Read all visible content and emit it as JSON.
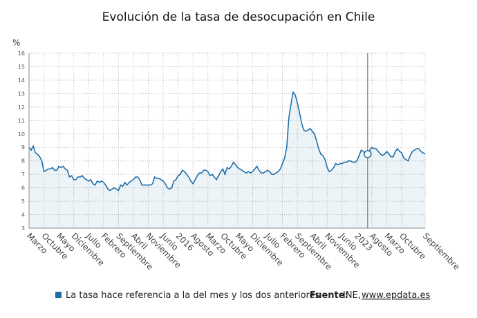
{
  "chart_data": {
    "type": "line",
    "title": "Evolución de la tasa de desocupación en Chile",
    "y_label": "%",
    "categories": [
      "Marzo",
      null,
      null,
      null,
      null,
      null,
      null,
      "Octubre",
      null,
      null,
      null,
      null,
      null,
      null,
      "Mayo",
      null,
      null,
      null,
      null,
      null,
      null,
      "Diciembre",
      null,
      null,
      null,
      null,
      null,
      null,
      "Julio",
      null,
      null,
      null,
      null,
      null,
      null,
      "Febrero",
      null,
      null,
      null,
      null,
      null,
      null,
      "Septiembre",
      null,
      null,
      null,
      null,
      null,
      null,
      "Abril",
      null,
      null,
      null,
      null,
      null,
      null,
      "Noviembre",
      null,
      null,
      null,
      null,
      null,
      null,
      "Junio",
      null,
      null,
      null,
      null,
      null,
      null,
      "2016",
      null,
      null,
      null,
      null,
      null,
      null,
      "Agosto",
      null,
      null,
      null,
      null,
      null,
      null,
      "Marzo",
      null,
      null,
      null,
      null,
      null,
      null,
      "Octubre",
      null,
      null,
      null,
      null,
      null,
      null,
      "Mayo",
      null,
      null,
      null,
      null,
      null,
      null,
      "Diciembre",
      null,
      null,
      null,
      null,
      null,
      null,
      "Julio",
      null,
      null,
      null,
      null,
      null,
      null,
      "Febrero",
      null,
      null,
      null,
      null,
      null,
      null,
      "Septiembre",
      null,
      null,
      null,
      null,
      null,
      null,
      "Abril",
      null,
      null,
      null,
      null,
      null,
      null,
      "Noviembre",
      null,
      null,
      null,
      null,
      null,
      null,
      "Junio",
      null,
      null,
      null,
      null,
      null,
      null,
      "2023",
      null,
      null,
      null,
      null,
      null,
      null,
      "Agosto",
      null,
      null,
      null,
      null,
      null,
      null,
      "Marzo",
      null,
      null,
      null,
      null,
      null,
      null,
      "Octubre",
      null,
      null,
      null,
      null,
      null,
      null,
      null,
      null,
      null,
      null,
      "Septiembre"
    ],
    "values": [
      9.0,
      8.8,
      9.1,
      8.6,
      8.5,
      8.3,
      8.0,
      7.2,
      7.3,
      7.4,
      7.4,
      7.5,
      7.3,
      7.3,
      7.6,
      7.5,
      7.6,
      7.4,
      7.3,
      6.8,
      6.9,
      6.6,
      6.6,
      6.8,
      6.8,
      6.9,
      6.7,
      6.6,
      6.5,
      6.6,
      6.3,
      6.2,
      6.5,
      6.4,
      6.5,
      6.4,
      6.2,
      5.9,
      5.8,
      5.9,
      6.0,
      5.9,
      5.8,
      6.2,
      6.1,
      6.4,
      6.2,
      6.4,
      6.5,
      6.6,
      6.8,
      6.8,
      6.6,
      6.2,
      6.2,
      6.2,
      6.2,
      6.2,
      6.3,
      6.8,
      6.7,
      6.7,
      6.6,
      6.5,
      6.3,
      6.0,
      5.9,
      6.0,
      6.5,
      6.6,
      6.9,
      7.0,
      7.3,
      7.2,
      7.0,
      6.8,
      6.5,
      6.3,
      6.6,
      6.9,
      7.1,
      7.1,
      7.3,
      7.3,
      7.2,
      6.9,
      7.0,
      6.8,
      6.6,
      6.9,
      7.2,
      7.4,
      7.0,
      7.5,
      7.4,
      7.6,
      7.9,
      7.7,
      7.5,
      7.4,
      7.3,
      7.2,
      7.1,
      7.2,
      7.1,
      7.2,
      7.4,
      7.6,
      7.3,
      7.1,
      7.1,
      7.2,
      7.3,
      7.2,
      7.0,
      7.0,
      7.1,
      7.2,
      7.4,
      7.8,
      8.2,
      9.0,
      11.2,
      12.2,
      13.1,
      12.9,
      12.3,
      11.6,
      10.8,
      10.3,
      10.2,
      10.3,
      10.4,
      10.2,
      10.0,
      9.5,
      8.9,
      8.5,
      8.4,
      8.1,
      7.5,
      7.2,
      7.3,
      7.5,
      7.8,
      7.7,
      7.8,
      7.8,
      7.9,
      7.9,
      8.0,
      8.0,
      7.9,
      7.9,
      8.0,
      8.4,
      8.8,
      8.7,
      8.5,
      8.5,
      8.8,
      9.0,
      8.9,
      8.9,
      8.7,
      8.5,
      8.4,
      8.5,
      8.7,
      8.5,
      8.3,
      8.3,
      8.7,
      8.9,
      8.7,
      8.6,
      8.2,
      8.1,
      8.0,
      8.4,
      8.7,
      8.8,
      8.9,
      8.9,
      8.7,
      8.6,
      8.5
    ],
    "color": "#1f6ea8",
    "highlight_index": 159,
    "ylim": [
      3,
      16
    ],
    "yticks": [
      3,
      4,
      5,
      6,
      7,
      8,
      9,
      10,
      11,
      12,
      13,
      14,
      15,
      16
    ],
    "grid": true,
    "note": "La tasa hace referencia a la del mes y los dos anteriores",
    "source_label": "Fuente:",
    "source": "INE,",
    "source_link": "www.epdata.es"
  }
}
